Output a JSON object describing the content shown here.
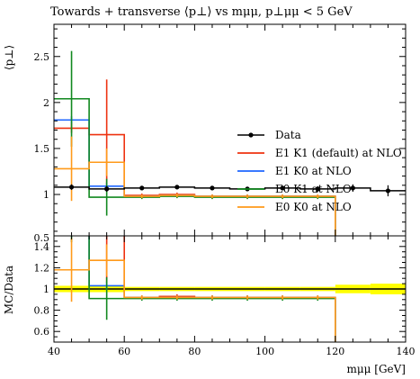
{
  "chart_data": {
    "type": "line",
    "title": "Towards + transverse ⟨p⊥⟩ vs mμμ, p⊥μμ < 5 GeV",
    "xlabel": "mμμ [GeV]",
    "ylabel_main": "⟨p⊥⟩",
    "ylabel_ratio": "MC/Data",
    "xlim": [
      40,
      140
    ],
    "ylim_main": [
      0.55,
      2.85
    ],
    "ylim_ratio": [
      0.5,
      1.5
    ],
    "x_ticks": [
      40,
      60,
      80,
      100,
      120,
      140
    ],
    "y_ticks_main": [
      1,
      1.5,
      2,
      2.5
    ],
    "y_ticks_ratio": [
      0.6,
      0.8,
      1,
      1.2,
      1.4
    ],
    "y_ticks_ratio_top": "0.5",
    "bin_edges": [
      40,
      50,
      60,
      70,
      80,
      90,
      100,
      110,
      120,
      130,
      140
    ],
    "data": {
      "name": "Data",
      "color": "#000000",
      "points": [
        {
          "x": 45,
          "y": 1.08,
          "err": 0.03
        },
        {
          "x": 55,
          "y": 1.06,
          "err": 0.03
        },
        {
          "x": 65,
          "y": 1.07,
          "err": 0.02
        },
        {
          "x": 75,
          "y": 1.08,
          "err": 0.02
        },
        {
          "x": 85,
          "y": 1.07,
          "err": 0.02
        },
        {
          "x": 95,
          "y": 1.06,
          "err": 0.02
        },
        {
          "x": 105,
          "y": 1.07,
          "err": 0.02
        },
        {
          "x": 115,
          "y": 1.06,
          "err": 0.03
        },
        {
          "x": 125,
          "y": 1.07,
          "err": 0.04
        },
        {
          "x": 135,
          "y": 1.04,
          "err": 0.06
        }
      ]
    },
    "series": [
      {
        "name": "E1 K1 (default) at NLO",
        "color": "#ee3311",
        "values": [
          1.72,
          1.65,
          0.99,
          1.0,
          0.98,
          0.98,
          0.98,
          0.98,
          0.0,
          null
        ],
        "errs": [
          0.05,
          0.6,
          0.02,
          0.02,
          0.02,
          0.02,
          0.02,
          0.02,
          0,
          null
        ],
        "ratio": [
          1.59,
          1.56,
          0.92,
          0.93,
          0.92,
          0.92,
          0.92,
          0.92,
          0.0,
          null
        ],
        "ratio_errs": [
          0.05,
          0.5,
          0.02,
          0.02,
          0.02,
          0.02,
          0.02,
          0.02,
          0,
          null
        ]
      },
      {
        "name": "E1 K0 at NLO",
        "color": "#1e66ff",
        "values": [
          1.81,
          1.09,
          0.98,
          0.99,
          0.98,
          0.98,
          0.98,
          0.98,
          0.0,
          null
        ],
        "errs": [
          0.04,
          0.04,
          0.02,
          0.02,
          0.02,
          0.02,
          0.02,
          0.02,
          0,
          null
        ],
        "ratio": [
          1.68,
          1.03,
          0.92,
          0.92,
          0.92,
          0.92,
          0.92,
          0.92,
          0.0,
          null
        ],
        "ratio_errs": [
          0.04,
          0.04,
          0.02,
          0.02,
          0.02,
          0.02,
          0.02,
          0.02,
          0,
          null
        ]
      },
      {
        "name": "E0 K1 at NLO",
        "color": "#11881f",
        "values": [
          2.04,
          0.97,
          0.97,
          0.98,
          0.97,
          0.97,
          0.97,
          0.97,
          0.0,
          null
        ],
        "errs": [
          0.52,
          0.2,
          0.02,
          0.02,
          0.02,
          0.02,
          0.02,
          0.02,
          0,
          null
        ],
        "ratio": [
          1.89,
          0.91,
          0.91,
          0.91,
          0.91,
          0.91,
          0.91,
          0.91,
          0.0,
          null
        ],
        "ratio_errs": [
          0.45,
          0.2,
          0.02,
          0.02,
          0.02,
          0.02,
          0.02,
          0.02,
          0,
          null
        ]
      },
      {
        "name": "E0 K0 at NLO",
        "color": "#ff9a1a",
        "values": [
          1.28,
          1.35,
          0.98,
          0.99,
          0.98,
          0.98,
          0.98,
          0.98,
          0.0,
          null
        ],
        "errs": [
          0.35,
          0.15,
          0.02,
          0.02,
          0.02,
          0.02,
          0.02,
          0.02,
          0,
          null
        ],
        "ratio": [
          1.18,
          1.27,
          0.92,
          0.92,
          0.92,
          0.92,
          0.92,
          0.92,
          0.0,
          null
        ],
        "ratio_errs": [
          0.3,
          0.15,
          0.02,
          0.02,
          0.02,
          0.02,
          0.02,
          0.02,
          0,
          null
        ]
      }
    ],
    "ratio_band": {
      "color": "#ffff00",
      "lo": [
        0.97,
        0.97,
        0.98,
        0.98,
        0.98,
        0.98,
        0.98,
        0.98,
        0.96,
        0.95
      ],
      "hi": [
        1.03,
        1.03,
        1.02,
        1.02,
        1.02,
        1.02,
        1.02,
        1.02,
        1.04,
        1.05
      ]
    },
    "legend_position": "right"
  }
}
